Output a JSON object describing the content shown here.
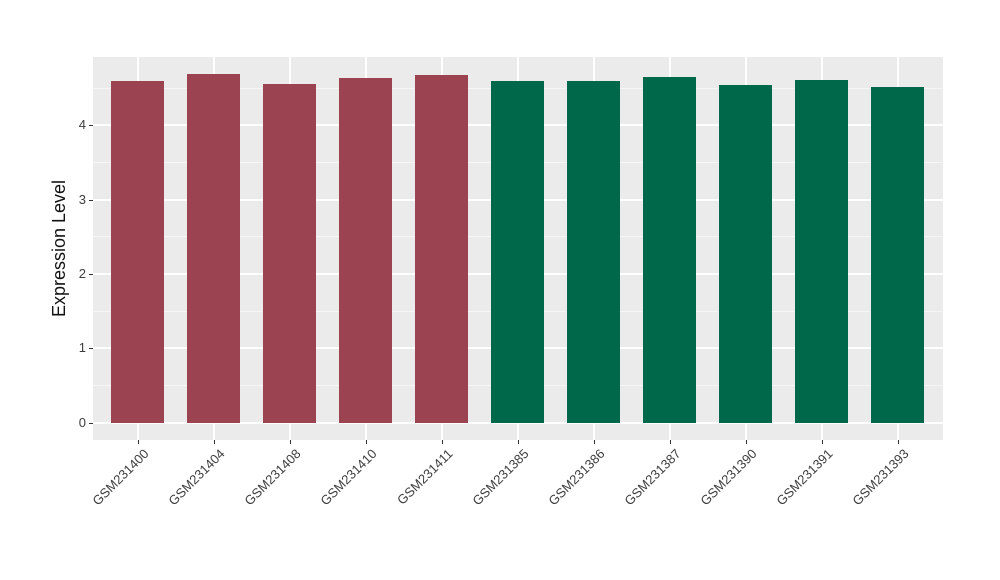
{
  "chart_data": {
    "type": "bar",
    "title": "",
    "xlabel": "",
    "ylabel": "Expression Level",
    "categories": [
      "GSM231400",
      "GSM231404",
      "GSM231408",
      "GSM231410",
      "GSM231411",
      "GSM231385",
      "GSM231386",
      "GSM231387",
      "GSM231390",
      "GSM231391",
      "GSM231393"
    ],
    "values": [
      4.6,
      4.69,
      4.55,
      4.64,
      4.68,
      4.59,
      4.6,
      4.65,
      4.54,
      4.61,
      4.51
    ],
    "bar_groups": [
      "maroon",
      "maroon",
      "maroon",
      "maroon",
      "maroon",
      "green",
      "green",
      "green",
      "green",
      "green",
      "green"
    ],
    "group_colors": {
      "maroon": "#9C4351",
      "green": "#00684A"
    },
    "yticks": [
      0,
      1,
      2,
      3,
      4
    ],
    "ylim": [
      0,
      4.92
    ],
    "minor_gridlines_every": 0.5,
    "xtick_rotation_deg": 45,
    "grid": "on",
    "legend": "none",
    "panel_background": "#EBEBEB",
    "gridline_color": "#FFFFFF",
    "axis_text_color": "#3d3d3d",
    "axis_title_color": "#111111",
    "tick_mark_color": "#333333"
  }
}
